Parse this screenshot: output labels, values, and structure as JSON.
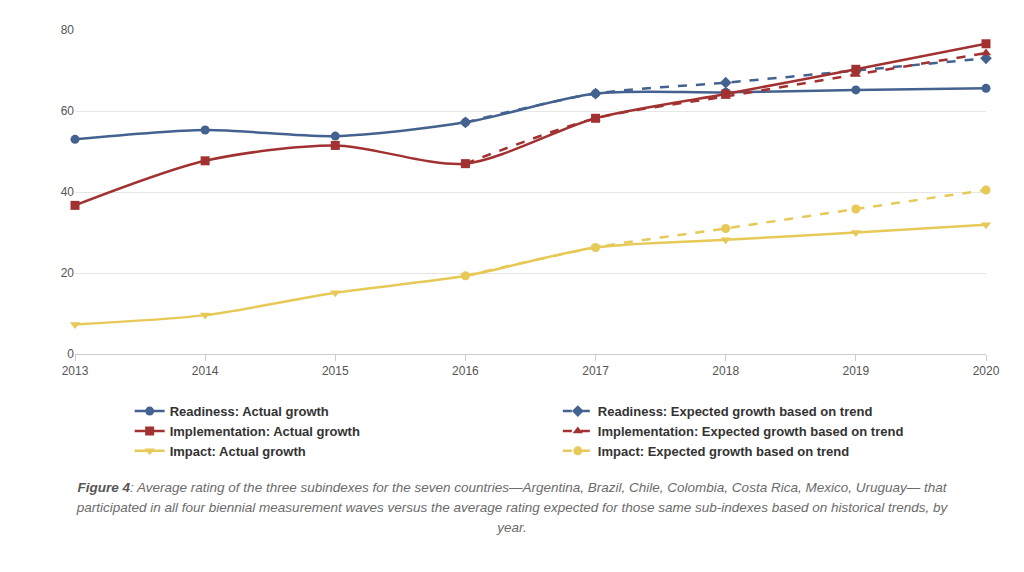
{
  "chart_data": {
    "type": "line",
    "x": [
      2013,
      2014,
      2015,
      2016,
      2017,
      2018,
      2019,
      2020
    ],
    "xlim": [
      2013,
      2020
    ],
    "xticks": [
      2013,
      2014,
      2015,
      2016,
      2017,
      2018,
      2019,
      2020
    ],
    "ylim": [
      0,
      80
    ],
    "yticks": [
      0,
      20,
      40,
      60,
      80
    ],
    "grid": true,
    "legend": "bottom",
    "series": [
      {
        "name": "Readiness: Actual growth",
        "color": "#44628f",
        "marker": "circle",
        "line_style": "solid",
        "values": [
          53.0,
          55.3,
          53.8,
          57.2,
          64.3,
          64.6,
          65.2,
          65.6
        ]
      },
      {
        "name": "Readiness: Expected growth based on trend",
        "color": "#44628f",
        "marker": "diamond",
        "line_style": "dash",
        "values": [
          null,
          null,
          null,
          57.2,
          64.3,
          67.0,
          70.0,
          73.0
        ]
      },
      {
        "name": "Implementation: Actual growth",
        "color": "#a23131",
        "marker": "square",
        "line_style": "solid",
        "values": [
          36.7,
          47.7,
          51.5,
          47.0,
          58.2,
          64.2,
          70.3,
          76.6
        ]
      },
      {
        "name": "Implementation: Expected growth based on trend",
        "color": "#a23131",
        "marker": "triangle-up",
        "line_style": "dash",
        "values": [
          null,
          null,
          null,
          47.0,
          58.2,
          63.6,
          69.0,
          74.3
        ]
      },
      {
        "name": "Impact: Actual growth",
        "color": "#e6c957",
        "marker": "triangle-down",
        "line_style": "solid",
        "values": [
          7.3,
          9.6,
          15.1,
          19.3,
          26.3,
          28.2,
          30.0,
          31.9
        ]
      },
      {
        "name": "Impact: Expected growth based on trend",
        "color": "#e6c957",
        "marker": "circle",
        "line_style": "dash",
        "values": [
          null,
          null,
          null,
          19.3,
          26.3,
          31.0,
          35.8,
          40.5
        ]
      }
    ],
    "caption": {
      "label": "Figure 4",
      "text": ": Average rating of the three subindexes for the seven countries—Argentina, Brazil, Chile, Colombia, Costa Rica, Mexico, Uruguay— that participated in all four biennial measurement waves versus the average rating expected for those same sub-indexes based on historical trends, by year."
    }
  }
}
